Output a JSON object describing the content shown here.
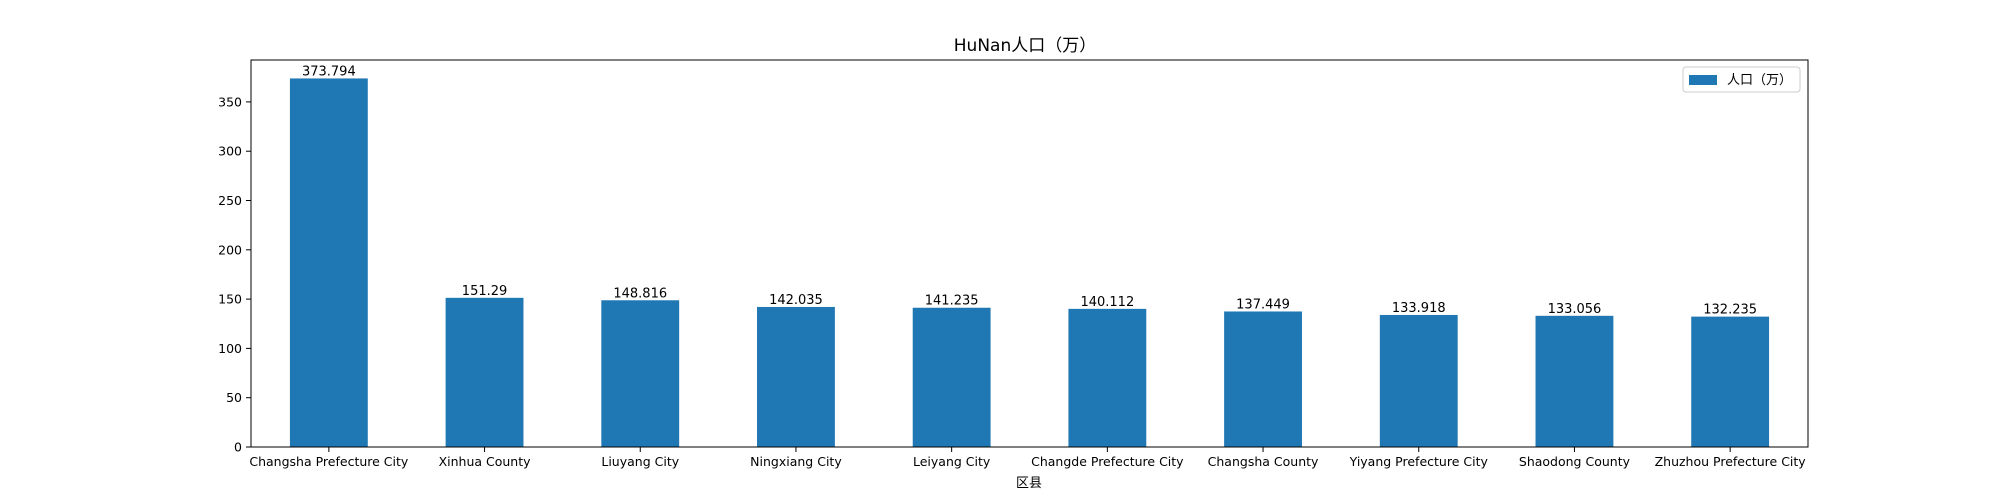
{
  "chart_data": {
    "type": "bar",
    "title": "HuNan人口（万）",
    "xlabel": "区县",
    "ylabel": "",
    "categories": [
      "Changsha Prefecture City",
      "Xinhua County",
      "Liuyang City",
      "Ningxiang City",
      "Leiyang City",
      "Changde Prefecture City",
      "Changsha County",
      "Yiyang Prefecture City",
      "Shaodong County",
      "Zhuzhou Prefecture City"
    ],
    "series": [
      {
        "name": "人口（万）",
        "color": "#1f77b4",
        "values": [
          373.794,
          151.29,
          148.816,
          142.035,
          141.235,
          140.112,
          137.449,
          133.918,
          133.056,
          132.235
        ]
      }
    ],
    "data_labels": [
      "373.794",
      "151.29",
      "148.816",
      "142.035",
      "141.235",
      "140.112",
      "137.449",
      "133.918",
      "133.056",
      "132.235"
    ],
    "ylim": [
      0,
      392.5
    ],
    "yticks": [
      0,
      50,
      100,
      150,
      200,
      250,
      300,
      350
    ],
    "grid": false,
    "legend_position": "top-right"
  }
}
